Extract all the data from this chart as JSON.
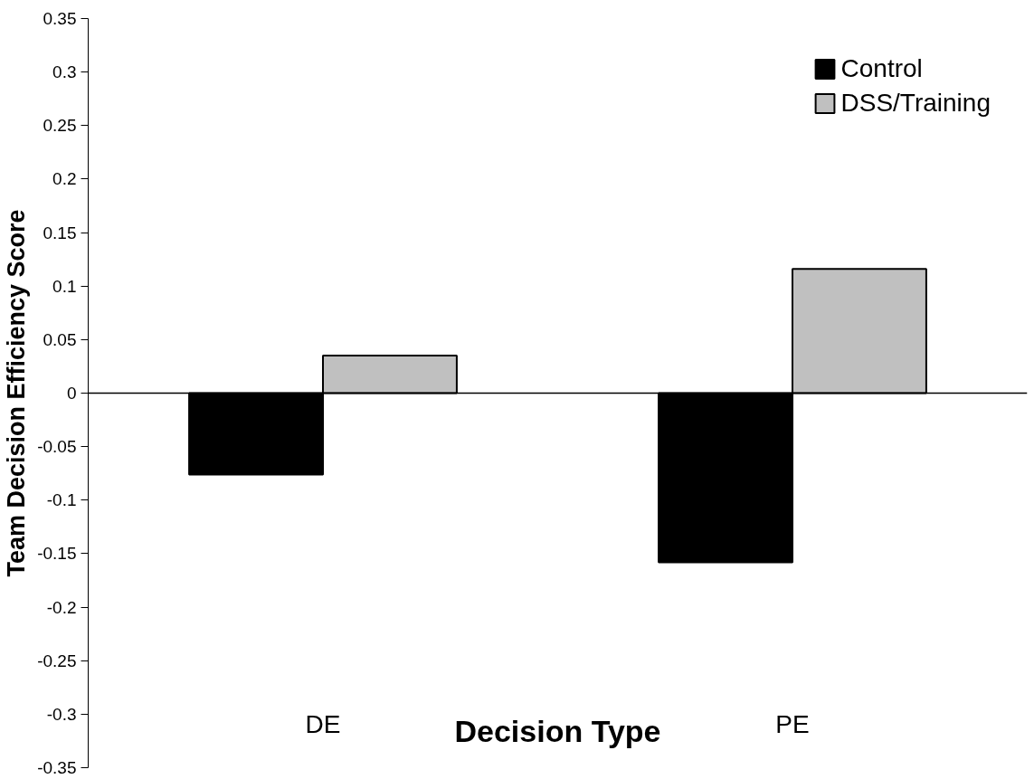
{
  "chart_data": {
    "type": "bar",
    "xlabel": "Decision Type",
    "ylabel": "Team Decision Efficiency Score",
    "categories": [
      "DE",
      "PE"
    ],
    "series": [
      {
        "name": "Control",
        "color": "#000000",
        "values": [
          -0.076,
          -0.158
        ]
      },
      {
        "name": "DSS/Training",
        "color": "#c0c0c0",
        "values": [
          0.035,
          0.116
        ]
      }
    ],
    "ylim": [
      -0.35,
      0.35
    ],
    "yticks": [
      -0.35,
      -0.3,
      -0.25,
      -0.2,
      -0.15,
      -0.1,
      -0.05,
      0,
      0.05,
      0.1,
      0.15,
      0.2,
      0.25,
      0.3,
      0.35
    ],
    "legend": "top right"
  }
}
